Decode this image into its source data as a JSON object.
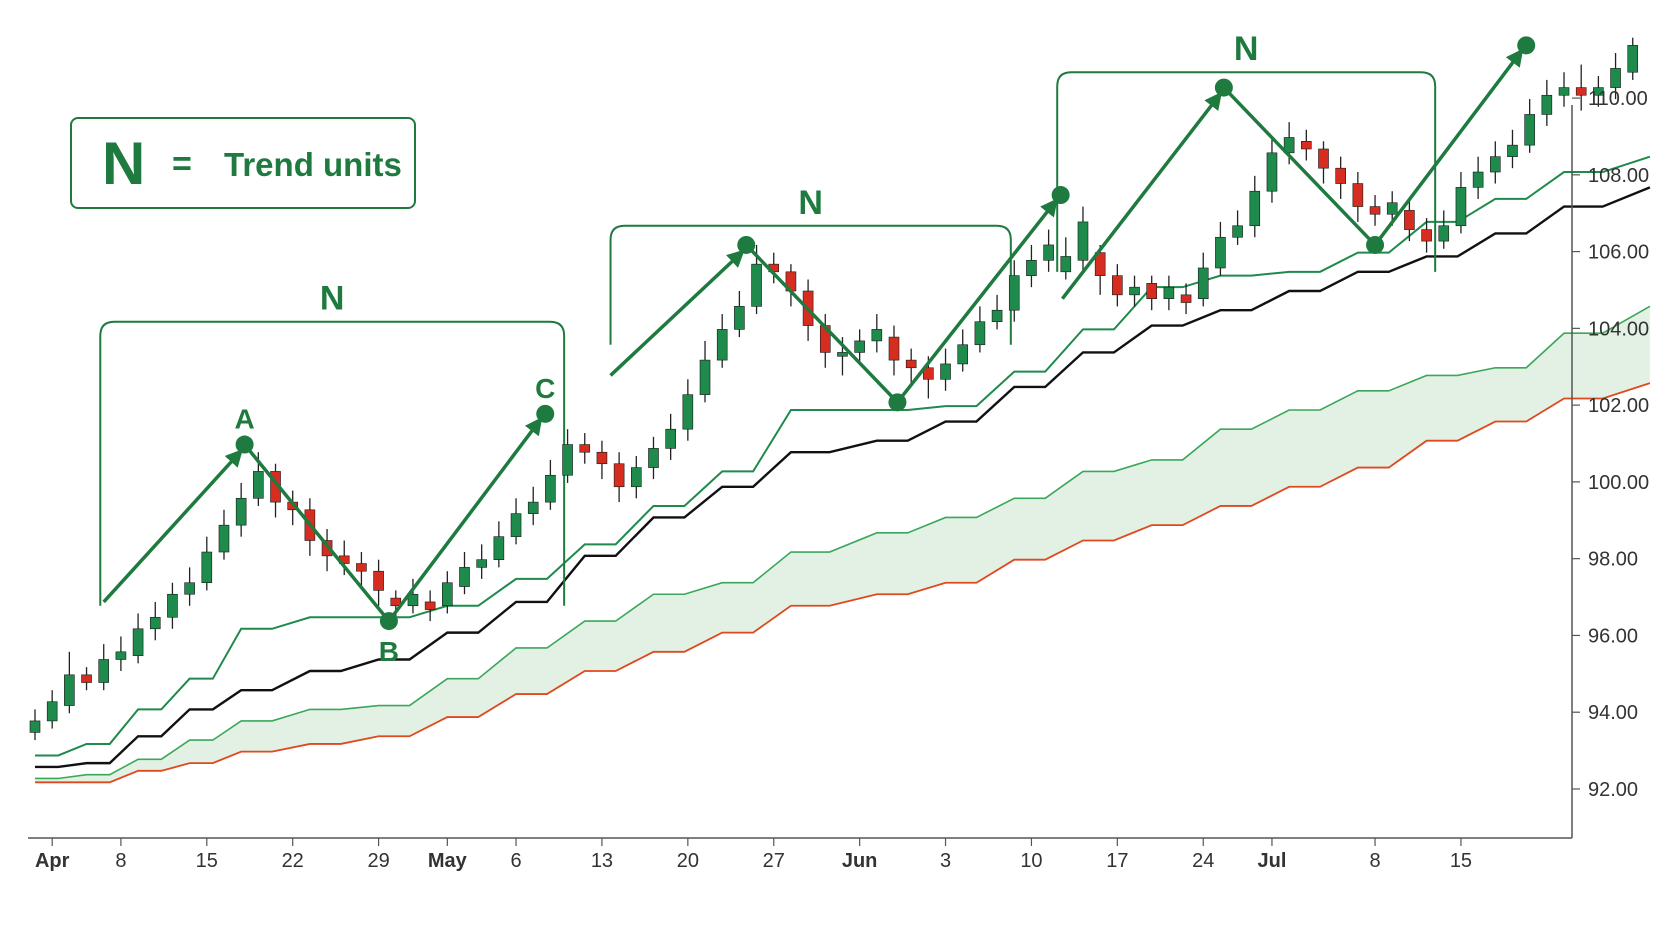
{
  "legend": {
    "symbol": "N",
    "equals": "=",
    "text": "Trend units"
  },
  "colors": {
    "bull": "#1e8a4c",
    "bear": "#d62d20",
    "accent": "#1e7a3e",
    "black_line": "#111111",
    "orange_line": "#e0481e",
    "cloud_fill": "#e3f1e5",
    "axis": "#555555"
  },
  "chart_data": {
    "type": "candlestick",
    "x_ticks": [
      {
        "label": "Apr",
        "i": 1,
        "bold": true
      },
      {
        "label": "8",
        "i": 5
      },
      {
        "label": "15",
        "i": 10
      },
      {
        "label": "22",
        "i": 15
      },
      {
        "label": "29",
        "i": 20
      },
      {
        "label": "May",
        "i": 24,
        "bold": true
      },
      {
        "label": "6",
        "i": 28
      },
      {
        "label": "13",
        "i": 33
      },
      {
        "label": "20",
        "i": 38
      },
      {
        "label": "27",
        "i": 43
      },
      {
        "label": "Jun",
        "i": 48,
        "bold": true
      },
      {
        "label": "3",
        "i": 53
      },
      {
        "label": "10",
        "i": 58
      },
      {
        "label": "17",
        "i": 63
      },
      {
        "label": "24",
        "i": 68
      },
      {
        "label": "Jul",
        "i": 72,
        "bold": true
      },
      {
        "label": "8",
        "i": 78
      },
      {
        "label": "15",
        "i": 83
      }
    ],
    "y_ticks": [
      "92.00",
      "94.00",
      "96.00",
      "98.00",
      "100.00",
      "102.00",
      "104.00",
      "106.00",
      "108.00",
      "110.00"
    ],
    "ylim": [
      91.4,
      111.2
    ],
    "candles": [
      [
        92.9,
        93.2,
        93.5,
        92.7
      ],
      [
        93.2,
        93.7,
        94.0,
        93.0
      ],
      [
        93.6,
        94.4,
        95.0,
        93.4
      ],
      [
        94.4,
        94.2,
        94.6,
        94.0
      ],
      [
        94.2,
        94.8,
        95.2,
        94.0
      ],
      [
        94.8,
        95.0,
        95.4,
        94.5
      ],
      [
        94.9,
        95.6,
        96.0,
        94.7
      ],
      [
        95.6,
        95.9,
        96.3,
        95.3
      ],
      [
        95.9,
        96.5,
        96.8,
        95.6
      ],
      [
        96.5,
        96.8,
        97.2,
        96.2
      ],
      [
        96.8,
        97.6,
        98.0,
        96.6
      ],
      [
        97.6,
        98.3,
        98.7,
        97.4
      ],
      [
        98.3,
        99.0,
        99.4,
        98.0
      ],
      [
        99.0,
        99.7,
        100.2,
        98.8
      ],
      [
        99.7,
        98.9,
        99.9,
        98.5
      ],
      [
        98.9,
        98.7,
        99.2,
        98.3
      ],
      [
        98.7,
        97.9,
        99.0,
        97.5
      ],
      [
        97.9,
        97.5,
        98.2,
        97.1
      ],
      [
        97.5,
        97.3,
        97.9,
        97.0
      ],
      [
        97.3,
        97.1,
        97.6,
        96.7
      ],
      [
        97.1,
        96.6,
        97.4,
        96.2
      ],
      [
        96.4,
        96.2,
        96.6,
        95.9
      ],
      [
        96.2,
        96.5,
        96.9,
        96.0
      ],
      [
        96.3,
        96.1,
        96.6,
        95.8
      ],
      [
        96.2,
        96.8,
        97.1,
        96.0
      ],
      [
        96.7,
        97.2,
        97.6,
        96.5
      ],
      [
        97.2,
        97.4,
        97.8,
        96.9
      ],
      [
        97.4,
        98.0,
        98.4,
        97.2
      ],
      [
        98.0,
        98.6,
        99.0,
        97.8
      ],
      [
        98.6,
        98.9,
        99.3,
        98.3
      ],
      [
        98.9,
        99.6,
        100.0,
        98.7
      ],
      [
        99.6,
        100.4,
        100.8,
        99.4
      ],
      [
        100.4,
        100.2,
        100.7,
        99.9
      ],
      [
        100.2,
        99.9,
        100.5,
        99.5
      ],
      [
        99.9,
        99.3,
        100.2,
        98.9
      ],
      [
        99.3,
        99.8,
        100.1,
        99.0
      ],
      [
        99.8,
        100.3,
        100.6,
        99.5
      ],
      [
        100.3,
        100.8,
        101.2,
        100.0
      ],
      [
        100.8,
        101.7,
        102.1,
        100.5
      ],
      [
        101.7,
        102.6,
        103.1,
        101.5
      ],
      [
        102.6,
        103.4,
        103.8,
        102.4
      ],
      [
        103.4,
        104.0,
        104.4,
        103.2
      ],
      [
        104.0,
        105.1,
        105.6,
        103.8
      ],
      [
        105.1,
        104.9,
        105.4,
        104.6
      ],
      [
        104.9,
        104.4,
        105.1,
        104.0
      ],
      [
        104.4,
        103.5,
        104.7,
        103.1
      ],
      [
        103.5,
        102.8,
        103.8,
        102.4
      ],
      [
        102.7,
        102.8,
        103.2,
        102.2
      ],
      [
        102.8,
        103.1,
        103.4,
        102.5
      ],
      [
        103.1,
        103.4,
        103.8,
        102.8
      ],
      [
        103.2,
        102.6,
        103.5,
        102.2
      ],
      [
        102.6,
        102.4,
        102.9,
        102.0
      ],
      [
        102.4,
        102.1,
        102.7,
        101.6
      ],
      [
        102.1,
        102.5,
        102.9,
        101.8
      ],
      [
        102.5,
        103.0,
        103.4,
        102.3
      ],
      [
        103.0,
        103.6,
        104.0,
        102.8
      ],
      [
        103.6,
        103.9,
        104.3,
        103.4
      ],
      [
        103.9,
        104.8,
        105.2,
        103.6
      ],
      [
        104.8,
        105.2,
        105.6,
        104.5
      ],
      [
        105.2,
        105.6,
        106.0,
        104.9
      ],
      [
        104.9,
        105.3,
        105.8,
        104.7
      ],
      [
        105.2,
        106.2,
        106.6,
        104.9
      ],
      [
        105.4,
        104.8,
        105.6,
        104.3
      ],
      [
        104.8,
        104.3,
        105.1,
        104.0
      ],
      [
        104.3,
        104.5,
        104.8,
        104.0
      ],
      [
        104.6,
        104.2,
        104.8,
        103.9
      ],
      [
        104.2,
        104.5,
        104.8,
        103.9
      ],
      [
        104.3,
        104.1,
        104.6,
        103.8
      ],
      [
        104.2,
        105.0,
        105.4,
        104.0
      ],
      [
        105.0,
        105.8,
        106.2,
        104.8
      ],
      [
        105.8,
        106.1,
        106.5,
        105.6
      ],
      [
        106.1,
        107.0,
        107.4,
        105.8
      ],
      [
        107.0,
        108.0,
        108.4,
        106.7
      ],
      [
        108.0,
        108.4,
        108.8,
        107.7
      ],
      [
        108.3,
        108.1,
        108.6,
        107.8
      ],
      [
        108.1,
        107.6,
        108.3,
        107.2
      ],
      [
        107.6,
        107.2,
        107.9,
        106.8
      ],
      [
        107.2,
        106.6,
        107.5,
        106.2
      ],
      [
        106.6,
        106.4,
        106.9,
        106.1
      ],
      [
        106.4,
        106.7,
        107.0,
        106.1
      ],
      [
        106.5,
        106.0,
        106.8,
        105.7
      ],
      [
        106.0,
        105.7,
        106.3,
        105.4
      ],
      [
        105.7,
        106.1,
        106.5,
        105.5
      ],
      [
        106.1,
        107.1,
        107.5,
        105.9
      ],
      [
        107.1,
        107.5,
        107.9,
        106.8
      ],
      [
        107.5,
        107.9,
        108.3,
        107.2
      ],
      [
        107.9,
        108.2,
        108.6,
        107.6
      ],
      [
        108.2,
        109.0,
        109.4,
        108.0
      ],
      [
        109.0,
        109.5,
        109.9,
        108.7
      ],
      [
        109.5,
        109.7,
        110.1,
        109.2
      ],
      [
        109.7,
        109.5,
        110.3,
        109.1
      ],
      [
        109.5,
        109.7,
        110.0,
        109.2
      ],
      [
        109.7,
        110.2,
        110.6,
        109.4
      ],
      [
        110.1,
        110.8,
        111.0,
        109.9
      ]
    ],
    "lines": {
      "inner_green": [
        [
          0,
          92.3
        ],
        [
          3,
          92.6
        ],
        [
          6,
          93.5
        ],
        [
          9,
          94.3
        ],
        [
          12,
          95.6
        ],
        [
          16,
          95.9
        ],
        [
          20,
          95.9
        ],
        [
          24,
          96.2
        ],
        [
          28,
          96.9
        ],
        [
          32,
          97.8
        ],
        [
          36,
          98.8
        ],
        [
          40,
          99.7
        ],
        [
          44,
          101.3
        ],
        [
          49,
          101.3
        ],
        [
          53,
          101.4
        ],
        [
          57,
          102.3
        ],
        [
          61,
          103.4
        ],
        [
          65,
          104.5
        ],
        [
          69,
          104.8
        ],
        [
          73,
          104.9
        ],
        [
          77,
          105.4
        ],
        [
          81,
          106.2
        ],
        [
          85,
          106.8
        ],
        [
          89,
          107.5
        ],
        [
          94,
          107.9
        ]
      ],
      "black": [
        [
          0,
          92.0
        ],
        [
          3,
          92.1
        ],
        [
          6,
          92.8
        ],
        [
          9,
          93.5
        ],
        [
          12,
          94.0
        ],
        [
          16,
          94.5
        ],
        [
          20,
          94.8
        ],
        [
          24,
          95.5
        ],
        [
          28,
          96.3
        ],
        [
          32,
          97.5
        ],
        [
          36,
          98.5
        ],
        [
          40,
          99.3
        ],
        [
          44,
          100.2
        ],
        [
          49,
          100.5
        ],
        [
          53,
          101.0
        ],
        [
          57,
          101.9
        ],
        [
          61,
          102.8
        ],
        [
          65,
          103.5
        ],
        [
          69,
          103.9
        ],
        [
          73,
          104.4
        ],
        [
          77,
          104.9
        ],
        [
          81,
          105.3
        ],
        [
          85,
          105.9
        ],
        [
          89,
          106.6
        ],
        [
          94,
          107.1
        ]
      ],
      "cloud_top": [
        [
          0,
          91.7
        ],
        [
          3,
          91.8
        ],
        [
          6,
          92.2
        ],
        [
          9,
          92.7
        ],
        [
          12,
          93.2
        ],
        [
          16,
          93.5
        ],
        [
          20,
          93.6
        ],
        [
          24,
          94.3
        ],
        [
          28,
          95.1
        ],
        [
          32,
          95.8
        ],
        [
          36,
          96.5
        ],
        [
          40,
          96.8
        ],
        [
          44,
          97.6
        ],
        [
          49,
          98.1
        ],
        [
          53,
          98.5
        ],
        [
          57,
          99.0
        ],
        [
          61,
          99.7
        ],
        [
          65,
          100.0
        ],
        [
          69,
          100.8
        ],
        [
          73,
          101.3
        ],
        [
          77,
          101.8
        ],
        [
          81,
          102.2
        ],
        [
          85,
          102.4
        ],
        [
          89,
          103.3
        ],
        [
          94,
          104.0
        ]
      ],
      "cloud_bottom": [
        [
          0,
          91.6
        ],
        [
          3,
          91.6
        ],
        [
          6,
          91.9
        ],
        [
          9,
          92.1
        ],
        [
          12,
          92.4
        ],
        [
          16,
          92.6
        ],
        [
          20,
          92.8
        ],
        [
          24,
          93.3
        ],
        [
          28,
          93.9
        ],
        [
          32,
          94.5
        ],
        [
          36,
          95.0
        ],
        [
          40,
          95.5
        ],
        [
          44,
          96.2
        ],
        [
          49,
          96.5
        ],
        [
          53,
          96.8
        ],
        [
          57,
          97.4
        ],
        [
          61,
          97.9
        ],
        [
          65,
          98.3
        ],
        [
          69,
          98.8
        ],
        [
          73,
          99.3
        ],
        [
          77,
          99.8
        ],
        [
          81,
          100.5
        ],
        [
          85,
          101.0
        ],
        [
          89,
          101.6
        ],
        [
          94,
          102.0
        ]
      ]
    },
    "n_labels": [
      "N",
      "N",
      "N"
    ],
    "abc_labels": [
      "A",
      "B",
      "C"
    ],
    "pivots": [
      {
        "x": 12.2,
        "y": 100.4
      },
      {
        "x": 20.6,
        "y": 95.8
      },
      {
        "x": 29.7,
        "y": 101.2
      },
      {
        "x": 41.4,
        "y": 105.6
      },
      {
        "x": 50.2,
        "y": 101.5
      },
      {
        "x": 59.7,
        "y": 106.9
      },
      {
        "x": 69.2,
        "y": 109.7
      },
      {
        "x": 78.0,
        "y": 105.6
      },
      {
        "x": 86.8,
        "y": 110.8
      }
    ]
  }
}
